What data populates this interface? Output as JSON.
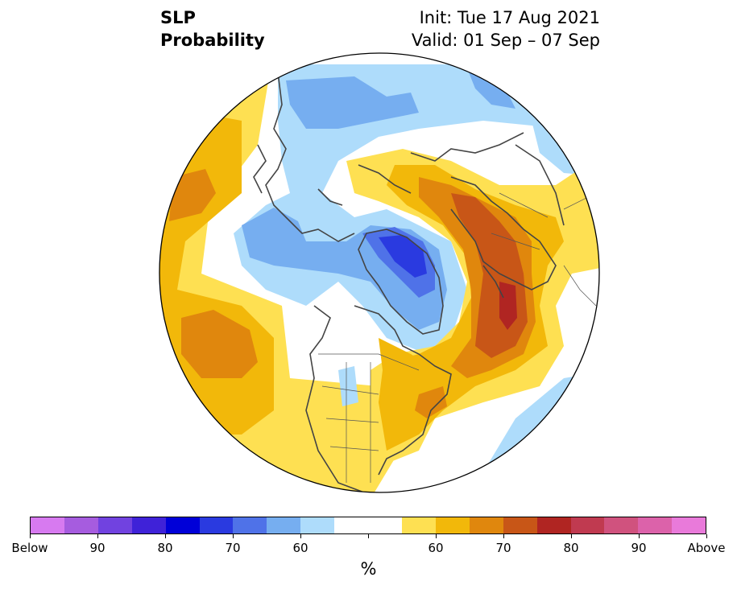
{
  "title": {
    "left_line1": "SLP",
    "left_line2": "Probability",
    "right_line1": "Init: Tue 17 Aug 2021",
    "right_line2": "Valid: 01 Sep – 07 Sep"
  },
  "colors": {
    "below_purple": "#d77af0",
    "below_2": "#a65cdf",
    "below_3": "#7142e0",
    "below_4": "#3f22d8",
    "below_5": "#0000d8",
    "below_6": "#2a3ae0",
    "below_7": "#4f72e8",
    "below_8": "#76aef0",
    "below_9": "#aedcfb",
    "neutral": "#ffffff",
    "above_9": "#fee052",
    "above_8": "#f2b80a",
    "above_7": "#e0870d",
    "above_6": "#c85617",
    "above_5": "#b02522",
    "above_4": "#c03a50",
    "above_3": "#d0527e",
    "above_2": "#dc62aa",
    "above_1": "#e97ada"
  },
  "colorbar": {
    "segments": [
      "#d77af0",
      "#a65cdf",
      "#7142e0",
      "#3f22d8",
      "#0000d8",
      "#2a3ae0",
      "#4f72e8",
      "#76aef0",
      "#aedcfb",
      "#ffffff",
      "#ffffff",
      "#fee052",
      "#f2b80a",
      "#e0870d",
      "#c85617",
      "#b02522",
      "#c03a50",
      "#d0527e",
      "#dc62aa",
      "#e97ada"
    ],
    "labels": [
      "Below",
      "90",
      "80",
      "70",
      "60",
      "60",
      "70",
      "80",
      "90",
      "Above"
    ],
    "unit": "%"
  }
}
